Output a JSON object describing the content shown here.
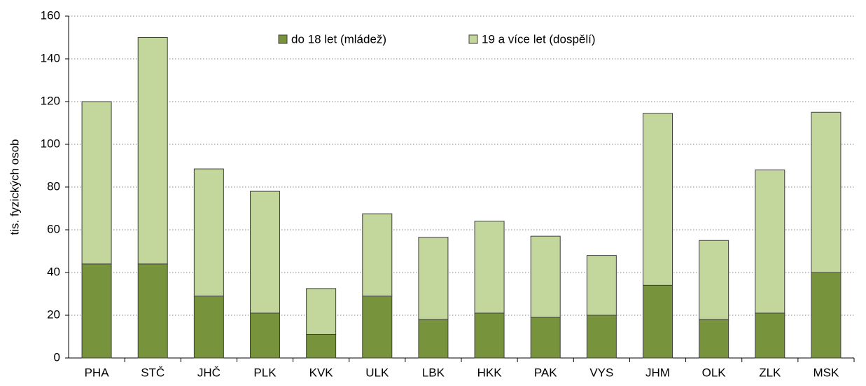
{
  "chart_data": {
    "type": "stacked_bar",
    "y_label": "tis. fyzických osob",
    "categories": [
      "PHA",
      "STČ",
      "JHČ",
      "PLK",
      "KVK",
      "ULK",
      "LBK",
      "HKK",
      "PAK",
      "VYS",
      "JHM",
      "OLK",
      "ZLK",
      "MSK"
    ],
    "series": [
      {
        "name": "do 18 let (mládež)",
        "color": "#77933c",
        "values": [
          44,
          44,
          29,
          21,
          11,
          29,
          18,
          21,
          19,
          20,
          34,
          18,
          21,
          40
        ]
      },
      {
        "name": "19 a více let (dospělí)",
        "color": "#c3d69b",
        "values": [
          76,
          106,
          59.5,
          57,
          21.5,
          38.5,
          38.5,
          43,
          38,
          28,
          80.5,
          37,
          67,
          75
        ]
      }
    ],
    "ylim": [
      0,
      160
    ],
    "yticks": [
      0,
      20,
      40,
      60,
      80,
      100,
      120,
      140,
      160
    ],
    "grid": true,
    "legend": "top"
  }
}
